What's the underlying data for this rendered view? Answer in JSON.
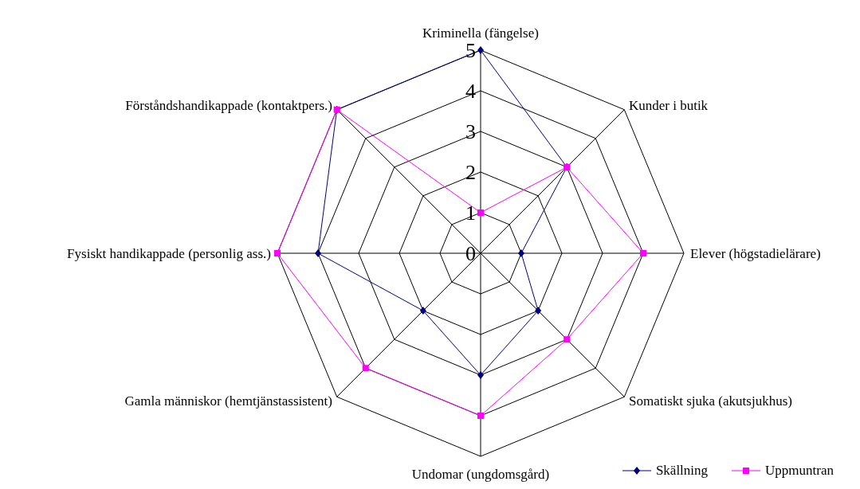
{
  "chart_data": {
    "type": "radar",
    "categories": [
      "Kriminella (fängelse)",
      "Kunder i butik",
      "Elever (högstadielärare)",
      "Somatiskt sjuka (akutsjukhus)",
      "Undomar (ungdomsgård)",
      "Gamla människor (hemtjänstassistent)",
      "Fysiskt handikappade (personlig ass.)",
      "Förståndshandikappade (kontaktpers.)"
    ],
    "series": [
      {
        "name": "Skällning",
        "color": "#000080",
        "marker": "diamond",
        "values": [
          5,
          3,
          1,
          2,
          3,
          2,
          4,
          5
        ]
      },
      {
        "name": "Uppmuntran",
        "color": "#ff00ff",
        "marker": "square",
        "values": [
          1,
          3,
          4,
          3,
          4,
          4,
          5,
          5
        ]
      }
    ],
    "ylim": [
      0,
      5
    ],
    "yticks": [
      0,
      1,
      2,
      3,
      4,
      5
    ],
    "grid": true,
    "legend": "bottom right"
  }
}
